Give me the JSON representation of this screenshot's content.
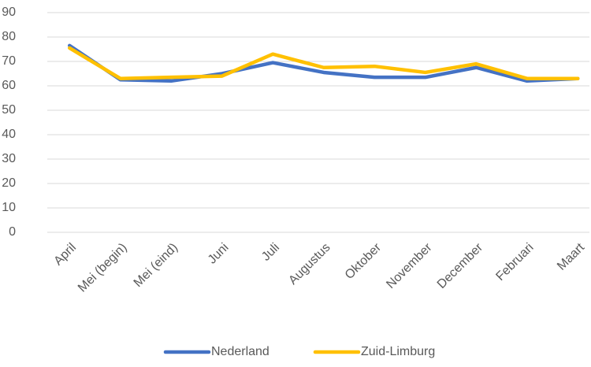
{
  "chart_data": {
    "type": "line",
    "categories": [
      "April",
      "Mei (begin)",
      "Mei (eind)",
      "Juni",
      "Juli",
      "Augustus",
      "Oktober",
      "November",
      "December",
      "Februari",
      "Maart"
    ],
    "series": [
      {
        "name": "Nederland",
        "color": "#4472c4",
        "values": [
          76.5,
          62.5,
          62,
          65,
          69.5,
          65.5,
          63.5,
          63.5,
          67.5,
          62,
          63
        ]
      },
      {
        "name": "Zuid-Limburg",
        "color": "#ffc000",
        "values": [
          75.5,
          63,
          63.5,
          64,
          73,
          67.5,
          68,
          65.5,
          69,
          63,
          63
        ]
      }
    ],
    "ylim": [
      0,
      90
    ],
    "yticks": [
      0,
      10,
      20,
      30,
      40,
      50,
      60,
      70,
      80,
      90
    ],
    "grid": true,
    "legend": "bottom"
  }
}
